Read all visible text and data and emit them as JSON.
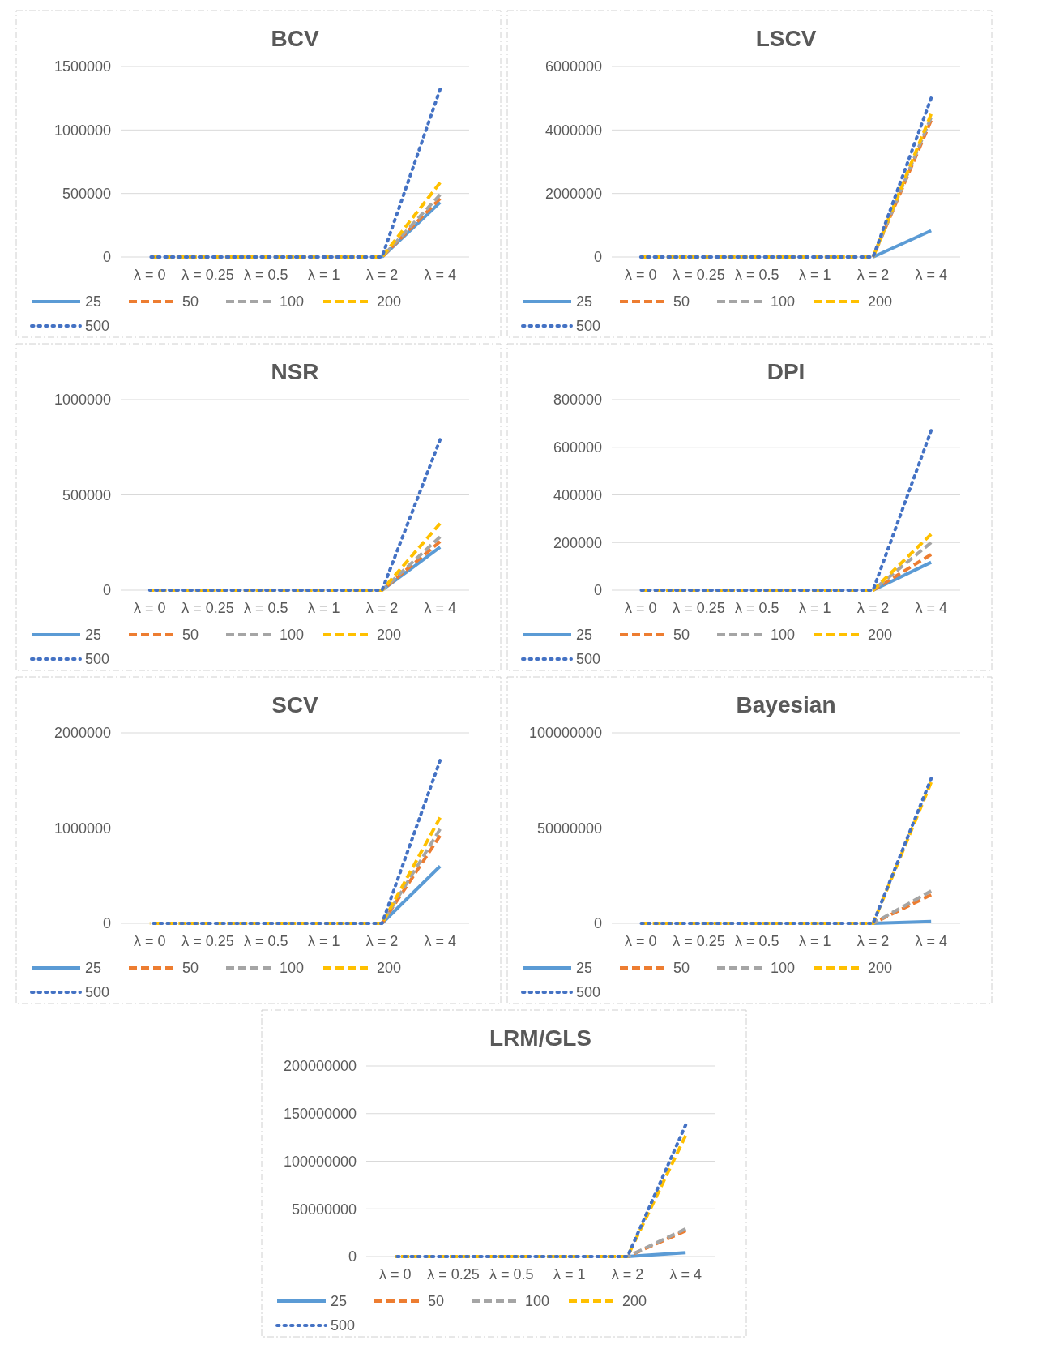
{
  "chart_data": [
    {
      "type": "line",
      "title": "BCV",
      "categories": [
        "λ = 0",
        "λ = 0.25",
        "λ = 0.5",
        "λ = 1",
        "λ = 2",
        "λ = 4"
      ],
      "ylim": [
        0,
        1500000
      ],
      "yticks": [
        0,
        500000,
        1000000,
        1500000
      ],
      "grid": "y",
      "legend": "bottom",
      "series": [
        {
          "name": "25",
          "color": "#5b9bd5",
          "line_style": "solid",
          "values": [
            null,
            null,
            null,
            null,
            0,
            430000
          ]
        },
        {
          "name": "50",
          "color": "#ed7d31",
          "line_style": "dashed",
          "values": [
            null,
            null,
            null,
            null,
            0,
            460000
          ]
        },
        {
          "name": "100",
          "color": "#a5a5a5",
          "line_style": "dashed",
          "values": [
            null,
            null,
            null,
            null,
            0,
            490000
          ]
        },
        {
          "name": "200",
          "color": "#ffc000",
          "line_style": "dashed",
          "values": [
            0,
            0,
            0,
            0,
            0,
            585000
          ]
        },
        {
          "name": "500",
          "color": "#4472c4",
          "line_style": "dotted",
          "values": [
            0,
            0,
            0,
            0,
            0,
            1320000
          ]
        }
      ]
    },
    {
      "type": "line",
      "title": "LSCV",
      "categories": [
        "λ = 0",
        "λ = 0.25",
        "λ = 0.5",
        "λ = 1",
        "λ = 2",
        "λ = 4"
      ],
      "ylim": [
        0,
        6000000
      ],
      "yticks": [
        0,
        2000000,
        4000000,
        6000000
      ],
      "grid": "y",
      "legend": "bottom",
      "series": [
        {
          "name": "25",
          "color": "#5b9bd5",
          "line_style": "solid",
          "values": [
            null,
            null,
            null,
            null,
            0,
            830000
          ]
        },
        {
          "name": "50",
          "color": "#ed7d31",
          "line_style": "dashed",
          "values": [
            null,
            null,
            null,
            null,
            0,
            4300000
          ]
        },
        {
          "name": "100",
          "color": "#a5a5a5",
          "line_style": "dashed",
          "values": [
            null,
            null,
            null,
            null,
            0,
            4400000
          ]
        },
        {
          "name": "200",
          "color": "#ffc000",
          "line_style": "dashed",
          "values": [
            0,
            0,
            0,
            0,
            0,
            4500000
          ]
        },
        {
          "name": "500",
          "color": "#4472c4",
          "line_style": "dotted",
          "values": [
            0,
            0,
            0,
            0,
            0,
            5000000
          ]
        }
      ]
    },
    {
      "type": "line",
      "title": "NSR",
      "categories": [
        "λ = 0",
        "λ = 0.25",
        "λ = 0.5",
        "λ = 1",
        "λ = 2",
        "λ = 4"
      ],
      "ylim": [
        0,
        1000000
      ],
      "yticks": [
        0,
        500000,
        1000000
      ],
      "grid": "y",
      "legend": "bottom",
      "series": [
        {
          "name": "25",
          "color": "#5b9bd5",
          "line_style": "solid",
          "values": [
            null,
            null,
            null,
            null,
            0,
            226000
          ]
        },
        {
          "name": "50",
          "color": "#ed7d31",
          "line_style": "dashed",
          "values": [
            null,
            null,
            null,
            null,
            0,
            255000
          ]
        },
        {
          "name": "100",
          "color": "#a5a5a5",
          "line_style": "dashed",
          "values": [
            null,
            null,
            null,
            null,
            0,
            280000
          ]
        },
        {
          "name": "200",
          "color": "#ffc000",
          "line_style": "dashed",
          "values": [
            0,
            0,
            0,
            0,
            0,
            350000
          ]
        },
        {
          "name": "500",
          "color": "#4472c4",
          "line_style": "dotted",
          "values": [
            0,
            0,
            0,
            0,
            0,
            790000
          ]
        }
      ]
    },
    {
      "type": "line",
      "title": "DPI",
      "categories": [
        "λ = 0",
        "λ = 0.25",
        "λ = 0.5",
        "λ = 1",
        "λ = 2",
        "λ = 4"
      ],
      "ylim": [
        0,
        800000
      ],
      "yticks": [
        0,
        200000,
        400000,
        600000,
        800000
      ],
      "grid": "y",
      "legend": "bottom",
      "series": [
        {
          "name": "25",
          "color": "#5b9bd5",
          "line_style": "solid",
          "values": [
            null,
            null,
            null,
            null,
            0,
            117000
          ]
        },
        {
          "name": "50",
          "color": "#ed7d31",
          "line_style": "dashed",
          "values": [
            null,
            null,
            null,
            null,
            0,
            150000
          ]
        },
        {
          "name": "100",
          "color": "#a5a5a5",
          "line_style": "dashed",
          "values": [
            null,
            null,
            null,
            null,
            0,
            200000
          ]
        },
        {
          "name": "200",
          "color": "#ffc000",
          "line_style": "dashed",
          "values": [
            0,
            0,
            0,
            0,
            0,
            235000
          ]
        },
        {
          "name": "500",
          "color": "#4472c4",
          "line_style": "dotted",
          "values": [
            0,
            0,
            0,
            0,
            0,
            670000
          ]
        }
      ]
    },
    {
      "type": "line",
      "title": "SCV",
      "categories": [
        "λ = 0",
        "λ = 0.25",
        "λ = 0.5",
        "λ = 1",
        "λ = 2",
        "λ = 4"
      ],
      "ylim": [
        0,
        2000000
      ],
      "yticks": [
        0,
        1000000,
        2000000
      ],
      "grid": "y",
      "legend": "bottom",
      "series": [
        {
          "name": "25",
          "color": "#5b9bd5",
          "line_style": "solid",
          "values": [
            null,
            null,
            null,
            null,
            0,
            600000
          ]
        },
        {
          "name": "50",
          "color": "#ed7d31",
          "line_style": "dashed",
          "values": [
            null,
            null,
            null,
            null,
            0,
            920000
          ]
        },
        {
          "name": "100",
          "color": "#a5a5a5",
          "line_style": "dashed",
          "values": [
            null,
            null,
            null,
            null,
            0,
            990000
          ]
        },
        {
          "name": "200",
          "color": "#ffc000",
          "line_style": "dashed",
          "values": [
            0,
            0,
            0,
            0,
            0,
            1110000
          ]
        },
        {
          "name": "500",
          "color": "#4472c4",
          "line_style": "dotted",
          "values": [
            0,
            0,
            0,
            0,
            0,
            1710000
          ]
        }
      ]
    },
    {
      "type": "line",
      "title": "Bayesian",
      "categories": [
        "λ = 0",
        "λ = 0.25",
        "λ = 0.5",
        "λ = 1",
        "λ = 2",
        "λ = 4"
      ],
      "ylim": [
        0,
        100000000
      ],
      "yticks": [
        0,
        50000000,
        100000000
      ],
      "grid": "y",
      "legend": "bottom",
      "series": [
        {
          "name": "25",
          "color": "#5b9bd5",
          "line_style": "solid",
          "values": [
            null,
            null,
            null,
            null,
            0,
            1000000
          ]
        },
        {
          "name": "50",
          "color": "#ed7d31",
          "line_style": "dashed",
          "values": [
            null,
            null,
            null,
            null,
            0,
            15000000
          ]
        },
        {
          "name": "100",
          "color": "#a5a5a5",
          "line_style": "dashed",
          "values": [
            null,
            null,
            null,
            null,
            0,
            17000000
          ]
        },
        {
          "name": "200",
          "color": "#ffc000",
          "line_style": "dashed",
          "values": [
            0,
            0,
            0,
            0,
            0,
            74000000
          ]
        },
        {
          "name": "500",
          "color": "#4472c4",
          "line_style": "dotted",
          "values": [
            0,
            0,
            0,
            0,
            0,
            76000000
          ]
        }
      ]
    },
    {
      "type": "line",
      "title": "LRM/GLS",
      "categories": [
        "λ = 0",
        "λ = 0.25",
        "λ = 0.5",
        "λ = 1",
        "λ = 2",
        "λ = 4"
      ],
      "ylim": [
        0,
        200000000
      ],
      "yticks": [
        0,
        50000000,
        100000000,
        150000000,
        200000000
      ],
      "grid": "y",
      "legend": "bottom",
      "series": [
        {
          "name": "25",
          "color": "#5b9bd5",
          "line_style": "solid",
          "values": [
            null,
            null,
            null,
            null,
            0,
            4000000
          ]
        },
        {
          "name": "50",
          "color": "#ed7d31",
          "line_style": "dashed",
          "values": [
            null,
            null,
            null,
            null,
            0,
            27000000
          ]
        },
        {
          "name": "100",
          "color": "#a5a5a5",
          "line_style": "dashed",
          "values": [
            null,
            null,
            null,
            null,
            0,
            29000000
          ]
        },
        {
          "name": "200",
          "color": "#ffc000",
          "line_style": "dashed",
          "values": [
            0,
            0,
            0,
            0,
            0,
            127000000
          ]
        },
        {
          "name": "500",
          "color": "#4472c4",
          "line_style": "dotted",
          "values": [
            0,
            0,
            0,
            0,
            0,
            138000000
          ]
        }
      ]
    }
  ]
}
